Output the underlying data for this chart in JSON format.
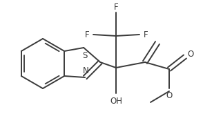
{
  "bg": "#ffffff",
  "lc": "#3a3a3a",
  "lw": 1.4,
  "fs": 8.5,
  "xlim": [
    0,
    294
  ],
  "ylim": [
    0,
    178
  ]
}
